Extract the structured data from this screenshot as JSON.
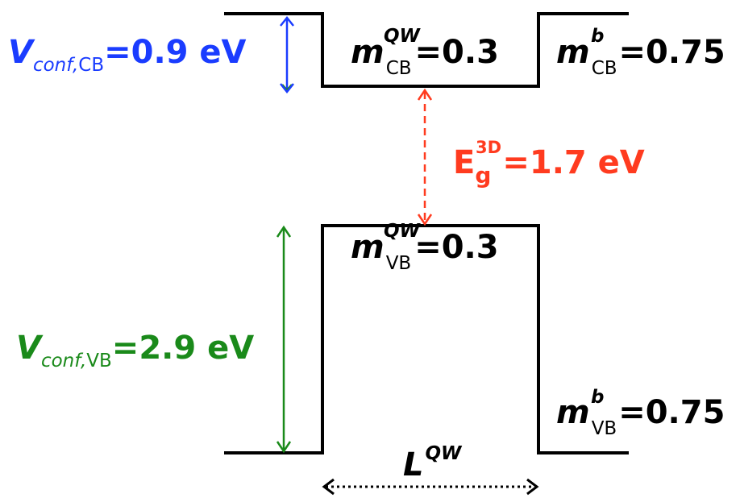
{
  "labels": [
    {
      "base": "V",
      "sub_italic": "conf,",
      "sub": "CB",
      "rest": "=0.9 eV"
    },
    {
      "base": "m",
      "sup": "QW",
      "sub": "CB",
      "rest": "=0.3"
    },
    {
      "base": "m",
      "sup": "b",
      "sub": "CB",
      "rest": "=0.75"
    },
    {
      "base": "E",
      "sub": "g",
      "sup": "3D",
      "rest": "=1.7 eV"
    },
    {
      "base": "m",
      "sup": "QW",
      "sub": "VB",
      "rest": "=0.3"
    },
    {
      "base": "V",
      "sub_italic": "conf,",
      "sub": "VB",
      "rest": "=2.9 eV"
    },
    {
      "base": "m",
      "sup": "b",
      "sub": "VB",
      "rest": "=0.75"
    },
    {
      "base": "L",
      "sup": "QW"
    }
  ]
}
